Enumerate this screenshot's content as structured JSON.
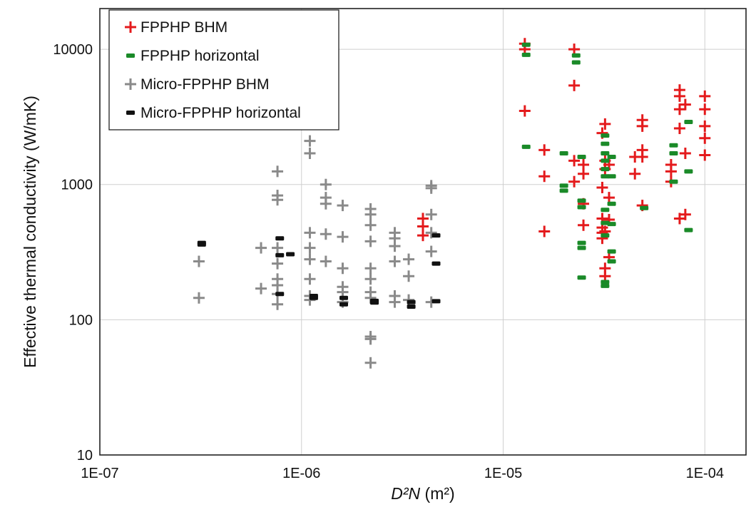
{
  "chart_data": {
    "type": "scatter",
    "xscale": "log",
    "yscale": "log",
    "xlim": [
      1e-07,
      0.00016
    ],
    "ylim": [
      10,
      20000
    ],
    "grid": true,
    "legend_position": "top-left",
    "xlabel": "D²N   (m²)",
    "ylabel": "Effective thermal conductivity   (W/mK)",
    "x_ticks": [
      1e-07,
      1e-06,
      1e-05,
      0.0001
    ],
    "x_tick_labels": [
      "1E-07",
      "1E-06",
      "1E-05",
      "1E-04"
    ],
    "y_ticks": [
      10,
      100,
      1000,
      10000
    ],
    "y_tick_labels": [
      "10",
      "100",
      "1000",
      "10000"
    ],
    "series": [
      {
        "name": "FPPHP BHM",
        "marker": "plus",
        "color": "#e41a1c",
        "points": [
          [
            4e-06,
            560
          ],
          [
            4e-06,
            490
          ],
          [
            4e-06,
            420
          ],
          [
            1.28e-05,
            11000
          ],
          [
            1.28e-05,
            10000
          ],
          [
            1.28e-05,
            3500
          ],
          [
            1.6e-05,
            1800
          ],
          [
            1.6e-05,
            1150
          ],
          [
            1.6e-05,
            450
          ],
          [
            2.25e-05,
            10000
          ],
          [
            2.25e-05,
            5400
          ],
          [
            2.25e-05,
            1500
          ],
          [
            2.25e-05,
            1050
          ],
          [
            2.5e-05,
            1400
          ],
          [
            2.5e-05,
            1200
          ],
          [
            2.5e-05,
            720
          ],
          [
            2.5e-05,
            500
          ],
          [
            3.1e-05,
            2400
          ],
          [
            3.1e-05,
            950
          ],
          [
            3.1e-05,
            560
          ],
          [
            3.1e-05,
            480
          ],
          [
            3.1e-05,
            440
          ],
          [
            3.1e-05,
            400
          ],
          [
            3.2e-05,
            2800
          ],
          [
            3.2e-05,
            1500
          ],
          [
            3.2e-05,
            1300
          ],
          [
            3.2e-05,
            450
          ],
          [
            3.2e-05,
            240
          ],
          [
            3.2e-05,
            210
          ],
          [
            3.35e-05,
            1400
          ],
          [
            3.35e-05,
            800
          ],
          [
            3.35e-05,
            550
          ],
          [
            3.35e-05,
            290
          ],
          [
            4.5e-05,
            1600
          ],
          [
            4.5e-05,
            1200
          ],
          [
            4.9e-05,
            3000
          ],
          [
            4.9e-05,
            2700
          ],
          [
            4.9e-05,
            1800
          ],
          [
            4.9e-05,
            1600
          ],
          [
            4.9e-05,
            700
          ],
          [
            6.8e-05,
            1400
          ],
          [
            6.8e-05,
            1250
          ],
          [
            6.8e-05,
            1050
          ],
          [
            7.5e-05,
            5000
          ],
          [
            7.5e-05,
            4500
          ],
          [
            7.5e-05,
            3600
          ],
          [
            7.5e-05,
            2600
          ],
          [
            7.5e-05,
            560
          ],
          [
            8e-05,
            3900
          ],
          [
            8e-05,
            1700
          ],
          [
            8e-05,
            600
          ],
          [
            0.0001,
            4500
          ],
          [
            0.0001,
            3600
          ],
          [
            0.0001,
            2700
          ],
          [
            0.0001,
            2200
          ],
          [
            0.0001,
            1650
          ]
        ]
      },
      {
        "name": "FPPHP horizontal",
        "marker": "dash",
        "color": "#1a8a28",
        "points": [
          [
            1.3e-05,
            10800
          ],
          [
            1.3e-05,
            9100
          ],
          [
            1.3e-05,
            1900
          ],
          [
            2e-05,
            1700
          ],
          [
            2e-05,
            980
          ],
          [
            2e-05,
            900
          ],
          [
            2.3e-05,
            9000
          ],
          [
            2.3e-05,
            8000
          ],
          [
            2.45e-05,
            1600
          ],
          [
            2.45e-05,
            760
          ],
          [
            2.45e-05,
            680
          ],
          [
            2.45e-05,
            370
          ],
          [
            2.45e-05,
            340
          ],
          [
            2.45e-05,
            205
          ],
          [
            3.2e-05,
            2300
          ],
          [
            3.2e-05,
            2000
          ],
          [
            3.2e-05,
            1700
          ],
          [
            3.2e-05,
            1500
          ],
          [
            3.2e-05,
            1300
          ],
          [
            3.2e-05,
            1150
          ],
          [
            3.2e-05,
            650
          ],
          [
            3.2e-05,
            520
          ],
          [
            3.2e-05,
            420
          ],
          [
            3.2e-05,
            190
          ],
          [
            3.2e-05,
            178
          ],
          [
            3.45e-05,
            1600
          ],
          [
            3.45e-05,
            1150
          ],
          [
            3.45e-05,
            720
          ],
          [
            3.45e-05,
            510
          ],
          [
            3.45e-05,
            320
          ],
          [
            3.45e-05,
            270
          ],
          [
            5e-05,
            670
          ],
          [
            7e-05,
            1950
          ],
          [
            7e-05,
            1700
          ],
          [
            7e-05,
            1050
          ],
          [
            8.3e-05,
            2900
          ],
          [
            8.3e-05,
            1250
          ],
          [
            8.3e-05,
            460
          ]
        ]
      },
      {
        "name": "Micro-FPPHP BHM",
        "marker": "plus",
        "color": "#8a8a8a",
        "points": [
          [
            3.1e-07,
            270
          ],
          [
            3.1e-07,
            145
          ],
          [
            6.3e-07,
            340
          ],
          [
            6.3e-07,
            170
          ],
          [
            7.6e-07,
            1250
          ],
          [
            7.6e-07,
            830
          ],
          [
            7.6e-07,
            770
          ],
          [
            7.6e-07,
            340
          ],
          [
            7.6e-07,
            260
          ],
          [
            7.6e-07,
            200
          ],
          [
            7.6e-07,
            180
          ],
          [
            7.6e-07,
            155
          ],
          [
            7.6e-07,
            130
          ],
          [
            1.1e-06,
            2100
          ],
          [
            1.1e-06,
            1700
          ],
          [
            1.1e-06,
            440
          ],
          [
            1.1e-06,
            340
          ],
          [
            1.1e-06,
            280
          ],
          [
            1.1e-06,
            200
          ],
          [
            1.1e-06,
            150
          ],
          [
            1.1e-06,
            140
          ],
          [
            1.32e-06,
            1000
          ],
          [
            1.32e-06,
            800
          ],
          [
            1.32e-06,
            720
          ],
          [
            1.32e-06,
            430
          ],
          [
            1.32e-06,
            270
          ],
          [
            1.6e-06,
            700
          ],
          [
            1.6e-06,
            410
          ],
          [
            1.6e-06,
            240
          ],
          [
            1.6e-06,
            175
          ],
          [
            1.6e-06,
            160
          ],
          [
            1.6e-06,
            135
          ],
          [
            2.2e-06,
            660
          ],
          [
            2.2e-06,
            600
          ],
          [
            2.2e-06,
            500
          ],
          [
            2.2e-06,
            380
          ],
          [
            2.2e-06,
            240
          ],
          [
            2.2e-06,
            200
          ],
          [
            2.2e-06,
            160
          ],
          [
            2.2e-06,
            145
          ],
          [
            2.2e-06,
            75
          ],
          [
            2.2e-06,
            72
          ],
          [
            2.2e-06,
            48
          ],
          [
            2.9e-06,
            440
          ],
          [
            2.9e-06,
            400
          ],
          [
            2.9e-06,
            350
          ],
          [
            2.9e-06,
            270
          ],
          [
            2.9e-06,
            150
          ],
          [
            2.9e-06,
            135
          ],
          [
            3.4e-06,
            280
          ],
          [
            3.4e-06,
            210
          ],
          [
            3.4e-06,
            140
          ],
          [
            4.4e-06,
            980
          ],
          [
            4.4e-06,
            940
          ],
          [
            4.4e-06,
            600
          ],
          [
            4.4e-06,
            440
          ],
          [
            4.4e-06,
            320
          ],
          [
            4.4e-06,
            135
          ]
        ]
      },
      {
        "name": "Micro-FPPHP horizontal",
        "marker": "dash",
        "color": "#111111",
        "points": [
          [
            3.2e-07,
            370
          ],
          [
            3.2e-07,
            360
          ],
          [
            7.8e-07,
            400
          ],
          [
            7.8e-07,
            300
          ],
          [
            7.8e-07,
            155
          ],
          [
            8.8e-07,
            305
          ],
          [
            1.15e-06,
            150
          ],
          [
            1.15e-06,
            145
          ],
          [
            1.62e-06,
            145
          ],
          [
            1.62e-06,
            130
          ],
          [
            2.3e-06,
            138
          ],
          [
            2.3e-06,
            134
          ],
          [
            3.5e-06,
            135
          ],
          [
            3.5e-06,
            125
          ],
          [
            4.65e-06,
            420
          ],
          [
            4.65e-06,
            260
          ],
          [
            4.65e-06,
            137
          ]
        ]
      }
    ]
  }
}
